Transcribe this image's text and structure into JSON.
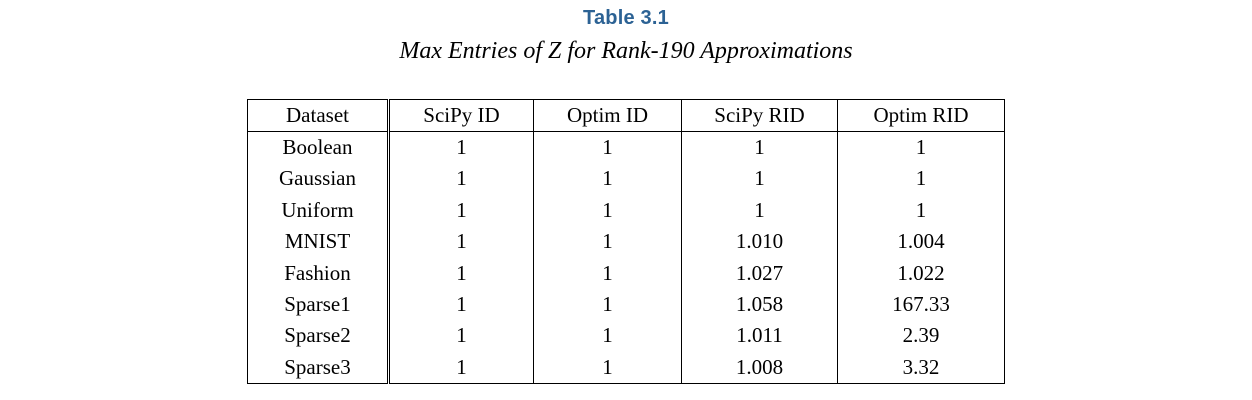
{
  "page": {
    "background": "#ffffff",
    "text_color": "#000000"
  },
  "title": {
    "label": "Table 3.1",
    "color": "#2c6294"
  },
  "caption": "Max Entries of Z for Rank-190 Approximations",
  "table": {
    "columns": [
      "Dataset",
      "SciPy ID",
      "Optim ID",
      "SciPy RID",
      "Optim RID"
    ],
    "rows": [
      [
        "Boolean",
        "1",
        "1",
        "1",
        "1"
      ],
      [
        "Gaussian",
        "1",
        "1",
        "1",
        "1"
      ],
      [
        "Uniform",
        "1",
        "1",
        "1",
        "1"
      ],
      [
        "MNIST",
        "1",
        "1",
        "1.010",
        "1.004"
      ],
      [
        "Fashion",
        "1",
        "1",
        "1.027",
        "1.022"
      ],
      [
        "Sparse1",
        "1",
        "1",
        "1.058",
        "167.33"
      ],
      [
        "Sparse2",
        "1",
        "1",
        "1.011",
        "2.39"
      ],
      [
        "Sparse3",
        "1",
        "1",
        "1.008",
        "3.32"
      ]
    ]
  },
  "chart_data": {
    "type": "table",
    "title": "Table 3.1",
    "subtitle": "Max Entries of Z for Rank-190 Approximations",
    "columns": [
      "Dataset",
      "SciPy ID",
      "Optim ID",
      "SciPy RID",
      "Optim RID"
    ],
    "rows": [
      [
        "Boolean",
        1,
        1,
        1,
        1
      ],
      [
        "Gaussian",
        1,
        1,
        1,
        1
      ],
      [
        "Uniform",
        1,
        1,
        1,
        1
      ],
      [
        "MNIST",
        1,
        1,
        1.01,
        1.004
      ],
      [
        "Fashion",
        1,
        1,
        1.027,
        1.022
      ],
      [
        "Sparse1",
        1,
        1,
        1.058,
        167.33
      ],
      [
        "Sparse2",
        1,
        1,
        1.011,
        2.39
      ],
      [
        "Sparse3",
        1,
        1,
        1.008,
        3.32
      ]
    ]
  }
}
